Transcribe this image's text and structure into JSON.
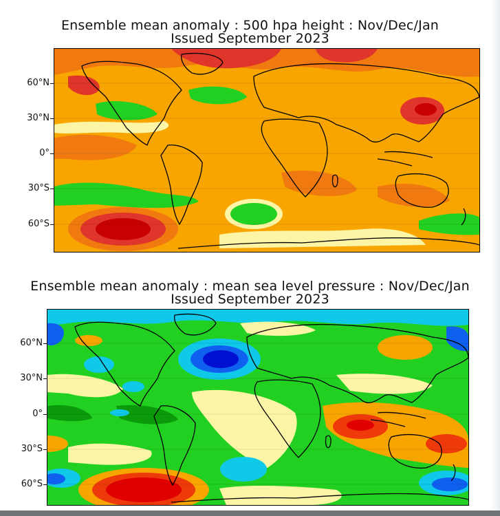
{
  "maps": [
    {
      "title_line1": "Ensemble mean anomaly : 500 hpa height : Nov/Dec/Jan",
      "title_line2": "Issued September 2023",
      "variable": "500 hpa height anomaly",
      "latitude_labels": [
        "60°N",
        "30°N",
        "0°",
        "30°S",
        "60°S"
      ],
      "palette": {
        "base": "#f8a500",
        "warm": "#f07a10",
        "hot": "#e0352a",
        "extreme": "#c80000",
        "neutral": "#fdf5a6",
        "cool": "#22d022",
        "cooler": "#10b010"
      }
    },
    {
      "title_line1": "Ensemble mean anomaly : mean sea level pressure : Nov/Dec/Jan",
      "title_line2": "Issued September 2023",
      "variable": "mean sea level pressure anomaly",
      "latitude_labels": [
        "60°N",
        "30°N",
        "0°",
        "30°S",
        "60°S"
      ],
      "palette": {
        "base": "#22d022",
        "deep_green": "#0a9a0a",
        "cyan": "#10c8e8",
        "blue": "#1060f0",
        "dark_blue": "#0010d0",
        "neutral": "#fdf5a6",
        "warm": "#f8a500",
        "hot": "#ee3a0a",
        "extreme": "#e00000"
      }
    }
  ]
}
